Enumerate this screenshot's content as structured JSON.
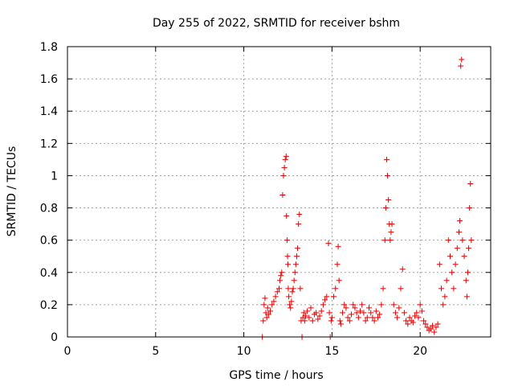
{
  "chart_data": {
    "type": "scatter",
    "title": "Day 255 of 2022, SRMTID for receiver bshm",
    "xlabel": "GPS time / hours",
    "ylabel": "SRMTID / TECUs",
    "xlim": [
      0,
      24
    ],
    "ylim": [
      0,
      1.8
    ],
    "x_ticks": [
      0,
      5,
      10,
      15,
      20
    ],
    "x_tick_labels": [
      "0",
      "5",
      "10",
      "15",
      "20"
    ],
    "y_ticks": [
      0,
      0.2,
      0.4,
      0.6,
      0.8,
      1,
      1.2,
      1.4,
      1.6,
      1.8
    ],
    "y_tick_labels": [
      "0",
      "0.2",
      "0.4",
      "0.6",
      "0.8",
      "1",
      "1.2",
      "1.4",
      "1.6",
      "1.8"
    ],
    "grid": true,
    "marker": "plus",
    "marker_color": "#e00000",
    "series": [
      {
        "x": [
          11.05,
          11.1,
          11.15,
          11.2,
          11.25,
          11.3,
          11.35,
          11.4,
          11.5,
          11.6,
          11.7,
          11.8,
          11.9,
          12.0,
          12.05,
          12.1,
          12.15,
          12.2,
          12.25,
          12.3,
          12.35,
          12.4,
          12.42,
          12.45,
          12.48,
          12.5,
          12.52,
          12.55,
          12.6,
          12.65,
          12.7,
          12.75,
          12.8,
          12.85,
          12.9,
          12.95,
          13.0,
          13.05,
          13.1,
          13.15,
          13.2,
          13.25,
          13.3,
          13.35,
          13.4,
          13.45,
          13.5,
          13.6,
          13.7,
          13.8,
          13.9,
          14.0,
          14.1,
          14.2,
          14.3,
          14.4,
          14.5,
          14.6,
          14.7,
          14.8,
          14.85,
          14.9,
          14.95,
          15.0,
          15.1,
          15.2,
          15.3,
          15.35,
          15.4,
          15.45,
          15.5,
          15.6,
          15.7,
          15.8,
          15.9,
          16.0,
          16.1,
          16.2,
          16.3,
          16.4,
          16.5,
          16.6,
          16.7,
          16.8,
          16.9,
          17.0,
          17.1,
          17.2,
          17.3,
          17.4,
          17.5,
          17.6,
          17.7,
          17.8,
          17.9,
          18.0,
          18.05,
          18.1,
          18.15,
          18.2,
          18.25,
          18.3,
          18.35,
          18.4,
          18.5,
          18.6,
          18.7,
          18.8,
          18.9,
          19.0,
          19.1,
          19.2,
          19.3,
          19.4,
          19.5,
          19.6,
          19.7,
          19.8,
          19.9,
          20.0,
          20.1,
          20.2,
          20.3,
          20.4,
          20.5,
          20.6,
          20.7,
          20.8,
          20.9,
          21.0,
          21.1,
          21.2,
          21.3,
          21.4,
          21.5,
          21.6,
          21.7,
          21.8,
          21.9,
          22.0,
          22.1,
          22.2,
          22.25,
          22.3,
          22.35,
          22.4,
          22.5,
          22.6,
          22.65,
          22.7,
          22.75,
          22.8,
          22.85,
          22.9
        ],
        "y": [
          0.0,
          0.1,
          0.2,
          0.24,
          0.15,
          0.12,
          0.18,
          0.14,
          0.16,
          0.2,
          0.22,
          0.25,
          0.28,
          0.3,
          0.35,
          0.38,
          0.4,
          0.88,
          1.0,
          1.05,
          1.1,
          1.12,
          0.75,
          0.6,
          0.5,
          0.45,
          0.3,
          0.25,
          0.2,
          0.18,
          0.22,
          0.28,
          0.3,
          0.35,
          0.4,
          0.45,
          0.5,
          0.55,
          0.7,
          0.76,
          0.3,
          0.1,
          0.0,
          0.12,
          0.15,
          0.1,
          0.13,
          0.16,
          0.12,
          0.18,
          0.1,
          0.14,
          0.15,
          0.11,
          0.13,
          0.16,
          0.2,
          0.23,
          0.25,
          0.58,
          0.15,
          0.0,
          0.1,
          0.12,
          0.25,
          0.3,
          0.45,
          0.56,
          0.35,
          0.1,
          0.08,
          0.15,
          0.2,
          0.18,
          0.12,
          0.1,
          0.14,
          0.2,
          0.18,
          0.15,
          0.12,
          0.16,
          0.2,
          0.15,
          0.1,
          0.12,
          0.18,
          0.15,
          0.12,
          0.1,
          0.16,
          0.12,
          0.14,
          0.2,
          0.3,
          0.6,
          0.8,
          1.1,
          1.0,
          0.85,
          0.7,
          0.6,
          0.65,
          0.7,
          0.2,
          0.15,
          0.12,
          0.18,
          0.3,
          0.42,
          0.15,
          0.1,
          0.08,
          0.12,
          0.1,
          0.09,
          0.13,
          0.15,
          0.12,
          0.2,
          0.16,
          0.1,
          0.08,
          0.06,
          0.04,
          0.05,
          0.07,
          0.03,
          0.06,
          0.08,
          0.45,
          0.3,
          0.2,
          0.25,
          0.35,
          0.6,
          0.5,
          0.4,
          0.3,
          0.45,
          0.55,
          0.65,
          0.72,
          1.68,
          1.72,
          0.6,
          0.5,
          0.35,
          0.25,
          0.4,
          0.55,
          0.8,
          0.95,
          0.6
        ]
      }
    ]
  }
}
